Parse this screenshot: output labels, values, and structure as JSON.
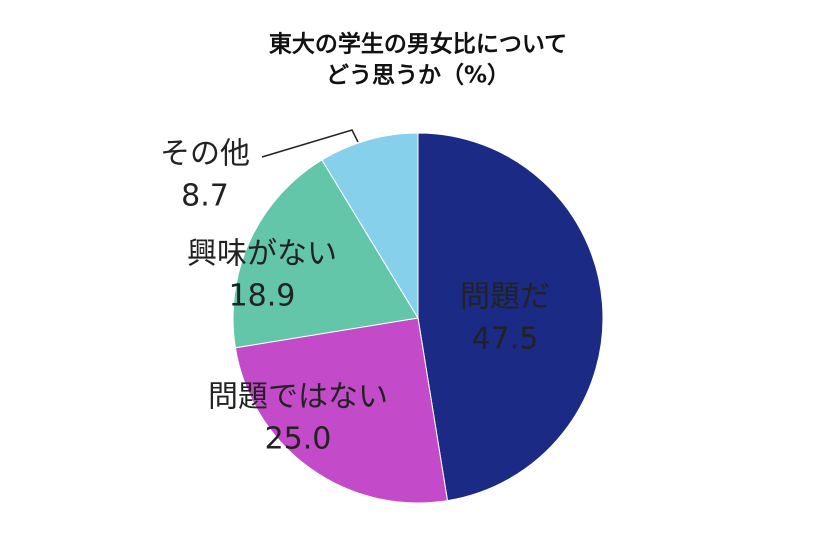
{
  "chart_data": {
    "type": "pie",
    "title": "東大の学生の男女比について",
    "subtitle": "どう思うか（%）",
    "categories": [
      "問題だ",
      "問題ではない",
      "興味がない",
      "その他"
    ],
    "values": [
      47.5,
      25,
      18.9,
      8.7
    ],
    "value_labels": [
      "47.5",
      "25.0",
      "18.9",
      "8.7"
    ],
    "colors": [
      "#1b2a85",
      "#c34ac9",
      "#63c6a8",
      "#86d0ec"
    ]
  }
}
